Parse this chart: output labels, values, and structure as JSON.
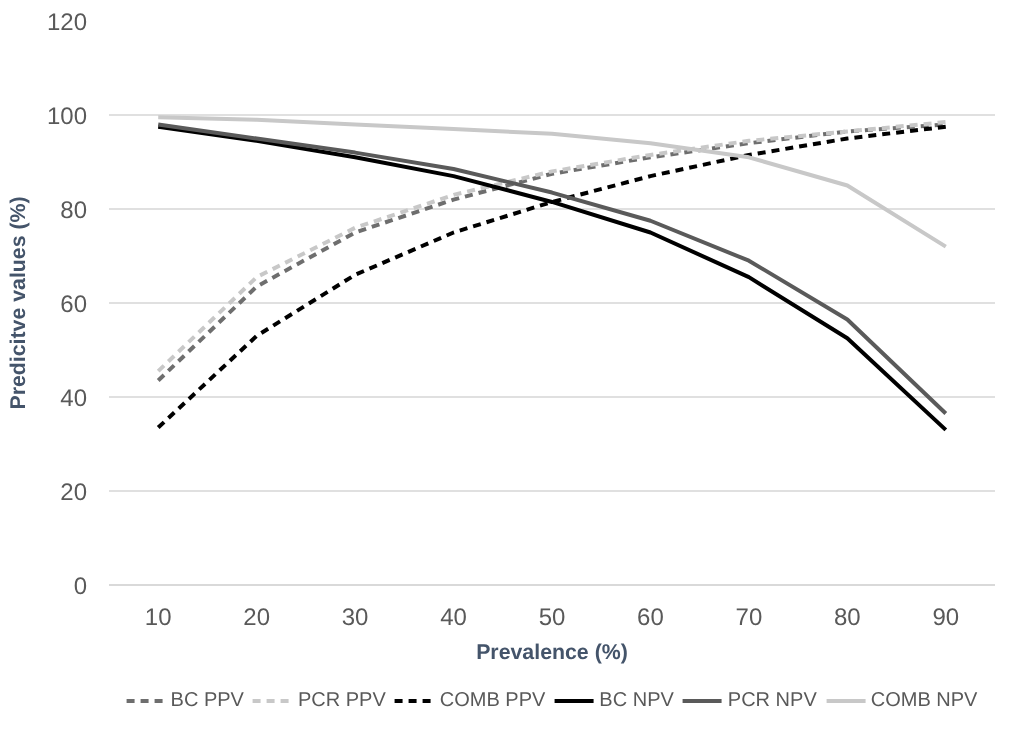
{
  "chart_data": {
    "type": "line",
    "xlabel": "Prevalence (%)",
    "ylabel": "Predicitve values (%)",
    "categories": [
      "10",
      "20",
      "30",
      "40",
      "50",
      "60",
      "70",
      "80",
      "90"
    ],
    "ylim": [
      0,
      120
    ],
    "yticks": [
      0,
      20,
      40,
      60,
      80,
      100,
      120
    ],
    "grid": "y",
    "legend": "bottom",
    "marker": "none",
    "series": [
      {
        "name": "BC PPV",
        "color": "#6e6e6e",
        "line_style": "dashed",
        "values": [
          43.5,
          63.5,
          75,
          82,
          87.5,
          91,
          94,
          96.5,
          98
        ]
      },
      {
        "name": "PCR PPV",
        "color": "#c8c8c8",
        "line_style": "dashed",
        "values": [
          45.5,
          65.5,
          76,
          83,
          88,
          91.5,
          94.5,
          96.5,
          98.5
        ]
      },
      {
        "name": "COMB PPV",
        "color": "#000000",
        "line_style": "dashed",
        "values": [
          33.5,
          53,
          66,
          75,
          81.5,
          87,
          91.5,
          95,
          97.5
        ]
      },
      {
        "name": "BC NPV",
        "color": "#000000",
        "line_style": "solid",
        "values": [
          97.5,
          94.5,
          91,
          87,
          81.5,
          75,
          65.5,
          52.5,
          33
        ]
      },
      {
        "name": "PCR NPV",
        "color": "#5a5a5a",
        "line_style": "solid",
        "values": [
          98,
          95,
          92,
          88.5,
          83.5,
          77.5,
          69,
          56.5,
          36.5
        ]
      },
      {
        "name": "COMB NPV",
        "color": "#c8c8c8",
        "line_style": "solid",
        "values": [
          99.5,
          99,
          98,
          97,
          96,
          94,
          91,
          85,
          72
        ]
      }
    ]
  }
}
